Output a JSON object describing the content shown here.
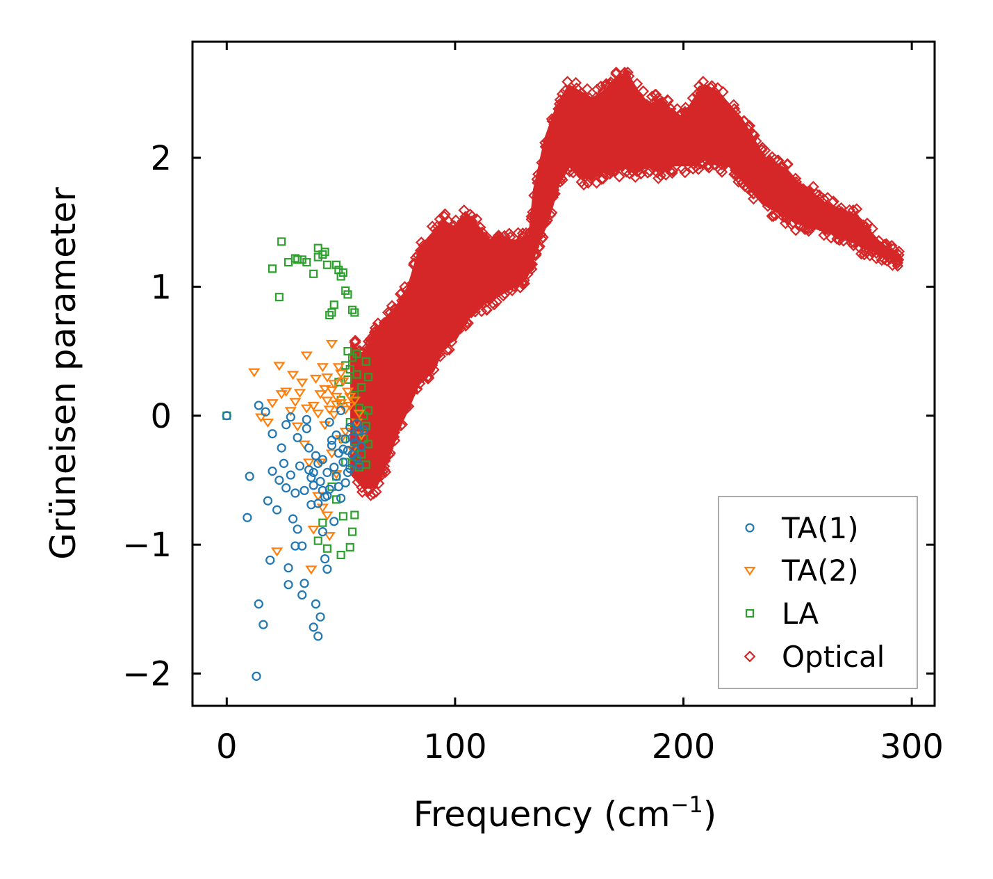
{
  "chart_data": {
    "type": "scatter",
    "xlabel": "Frequency (cm",
    "xlabel_sup": "−1",
    "xlabel_close": ")",
    "ylabel": "Grüneisen parameter",
    "xlim": [
      -15,
      310
    ],
    "ylim": [
      -2.25,
      2.9
    ],
    "x_ticks": [
      0,
      100,
      200,
      300
    ],
    "x_tick_labels": [
      "0",
      "100",
      "200",
      "300"
    ],
    "y_ticks": [
      -2,
      -1,
      0,
      1,
      2
    ],
    "y_tick_labels": [
      "−2",
      "−1",
      "0",
      "1",
      "2"
    ],
    "grid": false,
    "legend_position": "lower-right",
    "series": [
      {
        "name": "TA(1)",
        "marker": "circle",
        "color": "#1f77b4",
        "points": [
          [
            0,
            0
          ],
          [
            10,
            -0.47
          ],
          [
            9,
            -0.79
          ],
          [
            13,
            -2.02
          ],
          [
            14,
            0.08
          ],
          [
            14,
            -1.46
          ],
          [
            16,
            -1.62
          ],
          [
            18,
            -0.66
          ],
          [
            19,
            -1.12
          ],
          [
            20,
            -0.43
          ],
          [
            22,
            -0.73
          ],
          [
            23,
            -0.5
          ],
          [
            24,
            -0.25
          ],
          [
            25,
            -0.37
          ],
          [
            26,
            -0.56
          ],
          [
            27,
            -1.18
          ],
          [
            27,
            -1.31
          ],
          [
            28,
            -0.46
          ],
          [
            29,
            -0.8
          ],
          [
            30,
            -0.6
          ],
          [
            30,
            -1.01
          ],
          [
            31,
            -0.88
          ],
          [
            32,
            -0.39
          ],
          [
            33,
            -1.01
          ],
          [
            33,
            -1.39
          ],
          [
            34,
            -0.58
          ],
          [
            34,
            -1.3
          ],
          [
            35,
            -0.1
          ],
          [
            36,
            -0.25
          ],
          [
            37,
            -0.48
          ],
          [
            37,
            -0.69
          ],
          [
            38,
            -0.44
          ],
          [
            38,
            -1.64
          ],
          [
            39,
            -0.31
          ],
          [
            39,
            -1.46
          ],
          [
            40,
            -0.68
          ],
          [
            40,
            -1.71
          ],
          [
            41,
            -0.51
          ],
          [
            41,
            -1.56
          ],
          [
            42,
            -0.9
          ],
          [
            42,
            -0.34
          ],
          [
            43,
            -1.11
          ],
          [
            43,
            -0.63
          ],
          [
            44,
            -0.44
          ],
          [
            44,
            -1.19
          ],
          [
            45,
            -0.57
          ],
          [
            45,
            -0.05
          ],
          [
            46,
            -0.23
          ],
          [
            47,
            -0.82
          ],
          [
            47,
            -0.4
          ],
          [
            48,
            -0.15
          ],
          [
            48,
            -0.47
          ],
          [
            49,
            -0.29
          ],
          [
            50,
            -0.64
          ],
          [
            50,
            0.04
          ],
          [
            51,
            -0.36
          ],
          [
            52,
            -0.18
          ],
          [
            52,
            -0.52
          ],
          [
            53,
            -0.27
          ],
          [
            54,
            -0.09
          ],
          [
            54,
            -0.41
          ],
          [
            55,
            -0.3
          ],
          [
            56,
            -0.21
          ],
          [
            57,
            -0.33
          ],
          [
            58,
            -0.12
          ],
          [
            17,
            0.03
          ],
          [
            20,
            -0.14
          ],
          [
            26,
            -0.07
          ],
          [
            28,
            -0.01
          ],
          [
            31,
            -0.17
          ],
          [
            35,
            -0.03
          ],
          [
            36,
            -0.42
          ],
          [
            38,
            -0.54
          ],
          [
            40,
            -0.37
          ],
          [
            42,
            -0.58
          ],
          [
            44,
            -0.62
          ],
          [
            46,
            -0.19
          ],
          [
            49,
            -0.55
          ],
          [
            51,
            -0.26
          ],
          [
            53,
            -0.44
          ],
          [
            55,
            -0.17
          ],
          [
            57,
            -0.06
          ],
          [
            58,
            -0.38
          ],
          [
            59,
            -0.24
          ],
          [
            60,
            -0.11
          ]
        ]
      },
      {
        "name": "TA(2)",
        "marker": "triangle",
        "color": "#ff7f0e",
        "points": [
          [
            12,
            0.34
          ],
          [
            15,
            -0.01
          ],
          [
            18,
            -0.05
          ],
          [
            20,
            0.1
          ],
          [
            22,
            -1.05
          ],
          [
            23,
            0.39
          ],
          [
            24,
            0.17
          ],
          [
            26,
            0.19
          ],
          [
            28,
            0.04
          ],
          [
            29,
            0.32
          ],
          [
            30,
            0.11
          ],
          [
            31,
            -0.08
          ],
          [
            32,
            0.18
          ],
          [
            33,
            0.26
          ],
          [
            34,
            -0.22
          ],
          [
            35,
            0.06
          ],
          [
            35,
            0.47
          ],
          [
            36,
            -0.36
          ],
          [
            37,
            -1.19
          ],
          [
            38,
            0.08
          ],
          [
            38,
            -0.88
          ],
          [
            39,
            0.29
          ],
          [
            40,
            0.02
          ],
          [
            40,
            -0.62
          ],
          [
            41,
            0.17
          ],
          [
            41,
            -0.36
          ],
          [
            42,
            0.38
          ],
          [
            42,
            -0.71
          ],
          [
            43,
            0.21
          ],
          [
            43,
            -0.07
          ],
          [
            44,
            -0.77
          ],
          [
            44,
            0.12
          ],
          [
            45,
            0.05
          ],
          [
            45,
            -0.93
          ],
          [
            46,
            0.56
          ],
          [
            46,
            -0.29
          ],
          [
            47,
            0.25
          ],
          [
            47,
            0.01
          ],
          [
            48,
            -0.45
          ],
          [
            48,
            0.15
          ],
          [
            49,
            0.38
          ],
          [
            50,
            0.1
          ],
          [
            50,
            -0.18
          ],
          [
            51,
            0.27
          ],
          [
            52,
            -0.12
          ],
          [
            53,
            0.19
          ],
          [
            54,
            0.08
          ],
          [
            55,
            -0.26
          ],
          [
            56,
            0.12
          ],
          [
            57,
            -0.05
          ],
          [
            58,
            0.02
          ],
          [
            59,
            -0.15
          ],
          [
            44,
            0.3
          ],
          [
            46,
            0.2
          ],
          [
            48,
            0.09
          ],
          [
            50,
            0.33
          ],
          [
            52,
            0.05
          ],
          [
            54,
            0.15
          ]
        ]
      },
      {
        "name": "LA",
        "marker": "square",
        "color": "#2ca02c",
        "points": [
          [
            0,
            0
          ],
          [
            20,
            1.14
          ],
          [
            23,
            0.92
          ],
          [
            24,
            1.35
          ],
          [
            27,
            1.19
          ],
          [
            30,
            1.22
          ],
          [
            31,
            1.21
          ],
          [
            33,
            1.21
          ],
          [
            35,
            1.19
          ],
          [
            38,
            1.1
          ],
          [
            40,
            1.3
          ],
          [
            40,
            1.23
          ],
          [
            42,
            1.25
          ],
          [
            43,
            1.27
          ],
          [
            44,
            1.17
          ],
          [
            45,
            0.78
          ],
          [
            46,
            0.8
          ],
          [
            47,
            0.86
          ],
          [
            48,
            1.17
          ],
          [
            49,
            1.13
          ],
          [
            50,
            1.08
          ],
          [
            51,
            1.11
          ],
          [
            52,
            0.97
          ],
          [
            53,
            0.94
          ],
          [
            55,
            0.82
          ],
          [
            56,
            0.8
          ],
          [
            40,
            -0.97
          ],
          [
            42,
            -0.83
          ],
          [
            44,
            -1.03
          ],
          [
            48,
            -0.65
          ],
          [
            50,
            -1.08
          ],
          [
            51,
            -0.78
          ],
          [
            54,
            -1.02
          ],
          [
            55,
            -0.9
          ],
          [
            56,
            -0.77
          ],
          [
            49,
            0.26
          ],
          [
            50,
            0.12
          ],
          [
            51,
            -0.18
          ],
          [
            52,
            0.39
          ],
          [
            53,
            0.28
          ],
          [
            54,
            -0.05
          ],
          [
            55,
            0.45
          ],
          [
            55,
            -0.37
          ],
          [
            56,
            0.16
          ],
          [
            56,
            -0.25
          ],
          [
            57,
            0.32
          ],
          [
            57,
            -0.12
          ],
          [
            58,
            0.06
          ],
          [
            58,
            -0.4
          ],
          [
            59,
            0.22
          ],
          [
            59,
            -0.3
          ],
          [
            60,
            0.0
          ],
          [
            60,
            -0.18
          ],
          [
            61,
            0.42
          ],
          [
            61,
            -0.08
          ],
          [
            61,
            -0.38
          ],
          [
            62,
            0.04
          ],
          [
            62,
            -0.22
          ],
          [
            62,
            0.3
          ],
          [
            48,
            -0.47
          ],
          [
            46,
            -0.55
          ],
          [
            52,
            -0.36
          ],
          [
            54,
            0.36
          ],
          [
            53,
            0.5
          ],
          [
            57,
            0.48
          ]
        ]
      },
      {
        "name": "Optical",
        "marker": "diamond",
        "color": "#d62728",
        "points": [],
        "band_x": [
          55,
          60,
          65,
          70,
          75,
          80,
          85,
          90,
          95,
          100,
          105,
          110,
          115,
          120,
          125,
          130,
          133,
          135,
          140,
          145,
          150,
          155,
          160,
          165,
          170,
          175,
          180,
          185,
          190,
          195,
          200,
          205,
          210,
          215,
          220,
          225,
          230,
          235,
          240,
          245,
          250,
          255,
          260,
          265,
          270,
          275,
          280,
          285,
          290,
          295
        ],
        "band_upper": [
          0.55,
          0.45,
          0.65,
          0.75,
          0.85,
          1.0,
          1.3,
          1.4,
          1.5,
          1.45,
          1.55,
          1.45,
          1.35,
          1.38,
          1.35,
          1.35,
          1.4,
          1.75,
          2.15,
          2.4,
          2.55,
          2.5,
          2.45,
          2.5,
          2.6,
          2.65,
          2.5,
          2.4,
          2.45,
          2.35,
          2.3,
          2.45,
          2.55,
          2.5,
          2.4,
          2.3,
          2.15,
          2.0,
          1.95,
          1.9,
          1.8,
          1.75,
          1.65,
          1.62,
          1.58,
          1.55,
          1.45,
          1.35,
          1.28,
          1.22
        ],
        "band_lower": [
          -0.45,
          -0.55,
          -0.55,
          -0.35,
          -0.1,
          0.1,
          0.3,
          0.35,
          0.55,
          0.6,
          0.75,
          0.85,
          0.9,
          0.95,
          1.0,
          1.05,
          1.15,
          1.3,
          1.5,
          1.8,
          1.95,
          1.85,
          1.85,
          1.9,
          1.9,
          1.95,
          1.9,
          1.95,
          1.9,
          1.95,
          1.95,
          1.95,
          2.0,
          1.95,
          1.95,
          1.85,
          1.75,
          1.65,
          1.6,
          1.55,
          1.5,
          1.48,
          1.45,
          1.42,
          1.38,
          1.35,
          1.3,
          1.27,
          1.24,
          1.2
        ]
      }
    ]
  }
}
